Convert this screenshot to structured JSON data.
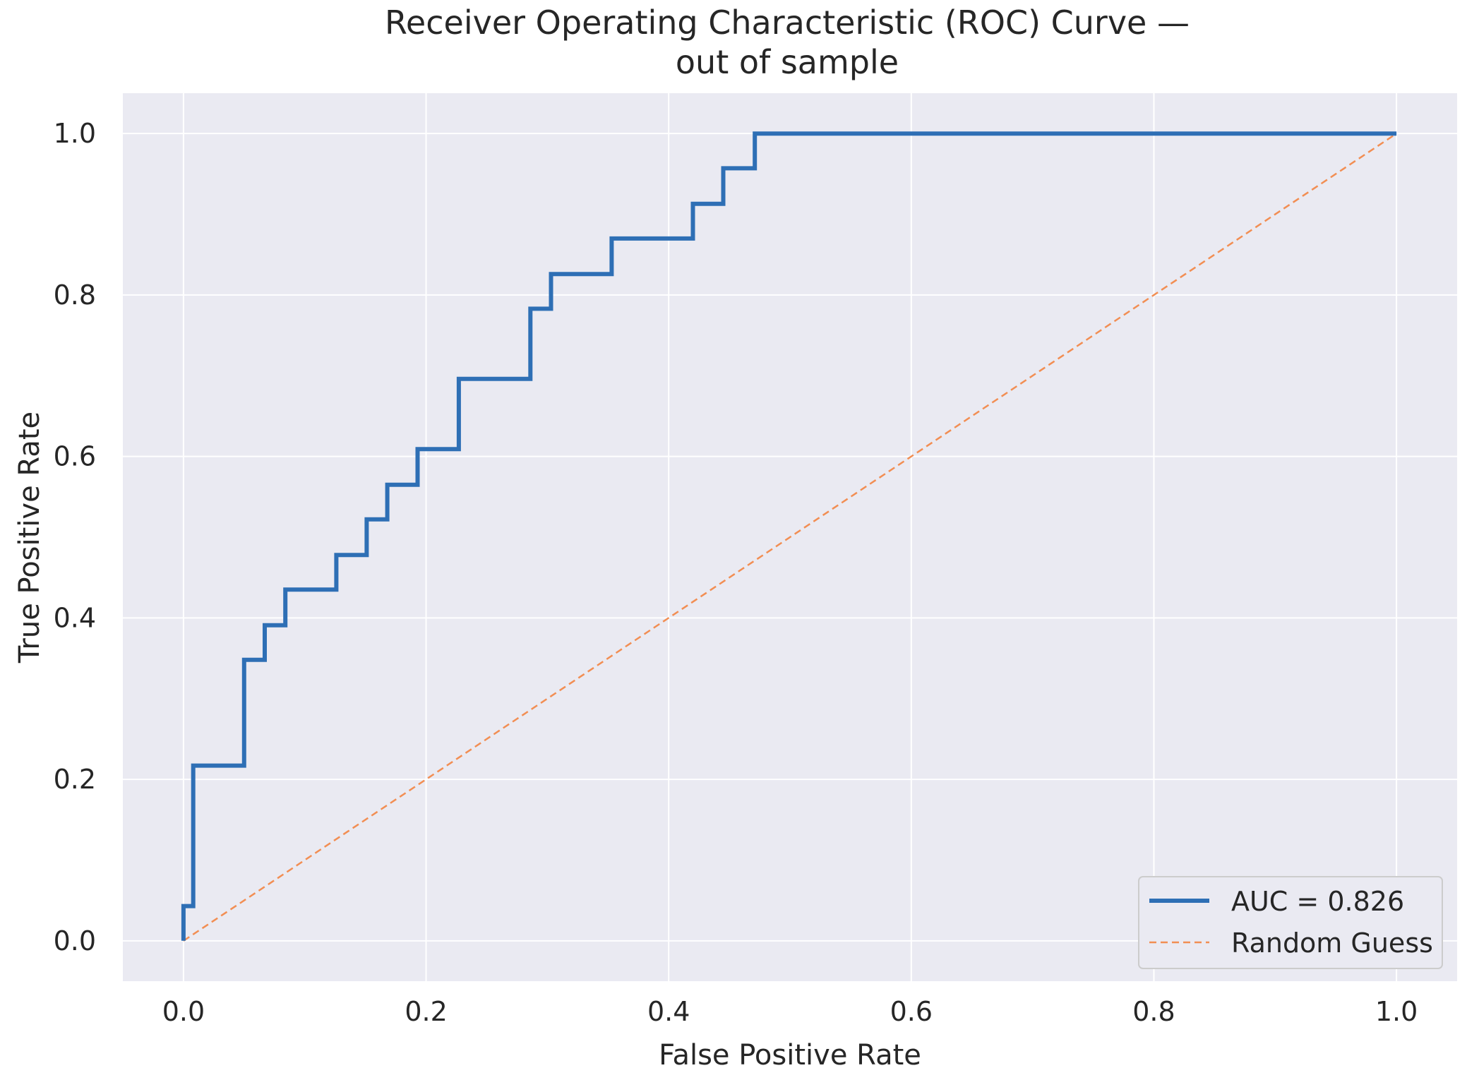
{
  "chart_data": {
    "type": "line",
    "title": "Receiver Operating Characteristic (ROC) Curve —",
    "subtitle": "out of sample",
    "xlabel": "False Positive Rate",
    "ylabel": "True Positive Rate",
    "xlim": [
      -0.05,
      1.05
    ],
    "ylim": [
      -0.05,
      1.05
    ],
    "x_ticks": [
      "0.0",
      "0.2",
      "0.4",
      "0.6",
      "0.8",
      "1.0"
    ],
    "y_ticks": [
      "0.0",
      "0.2",
      "0.4",
      "0.6",
      "0.8",
      "1.0"
    ],
    "grid": true,
    "legend_position": "lower-right",
    "background_color": "#eaeaf2",
    "series": [
      {
        "name": "AUC = 0.826",
        "style": "step",
        "color": "#2e6fb5",
        "x": [
          0.0,
          0.0,
          0.008,
          0.008,
          0.05,
          0.05,
          0.067,
          0.067,
          0.084,
          0.084,
          0.126,
          0.126,
          0.151,
          0.151,
          0.168,
          0.168,
          0.193,
          0.193,
          0.227,
          0.227,
          0.286,
          0.286,
          0.303,
          0.303,
          0.353,
          0.353,
          0.42,
          0.42,
          0.445,
          0.445,
          0.471,
          0.471,
          1.0
        ],
        "y": [
          0.0,
          0.043,
          0.043,
          0.217,
          0.217,
          0.348,
          0.348,
          0.391,
          0.391,
          0.435,
          0.435,
          0.478,
          0.478,
          0.522,
          0.522,
          0.565,
          0.565,
          0.609,
          0.609,
          0.696,
          0.696,
          0.783,
          0.783,
          0.826,
          0.826,
          0.87,
          0.87,
          0.913,
          0.913,
          0.957,
          0.957,
          1.0,
          1.0
        ]
      },
      {
        "name": "Random Guess",
        "style": "dashed",
        "color": "#f28e53",
        "x": [
          0.0,
          1.0
        ],
        "y": [
          0.0,
          1.0
        ]
      }
    ]
  }
}
